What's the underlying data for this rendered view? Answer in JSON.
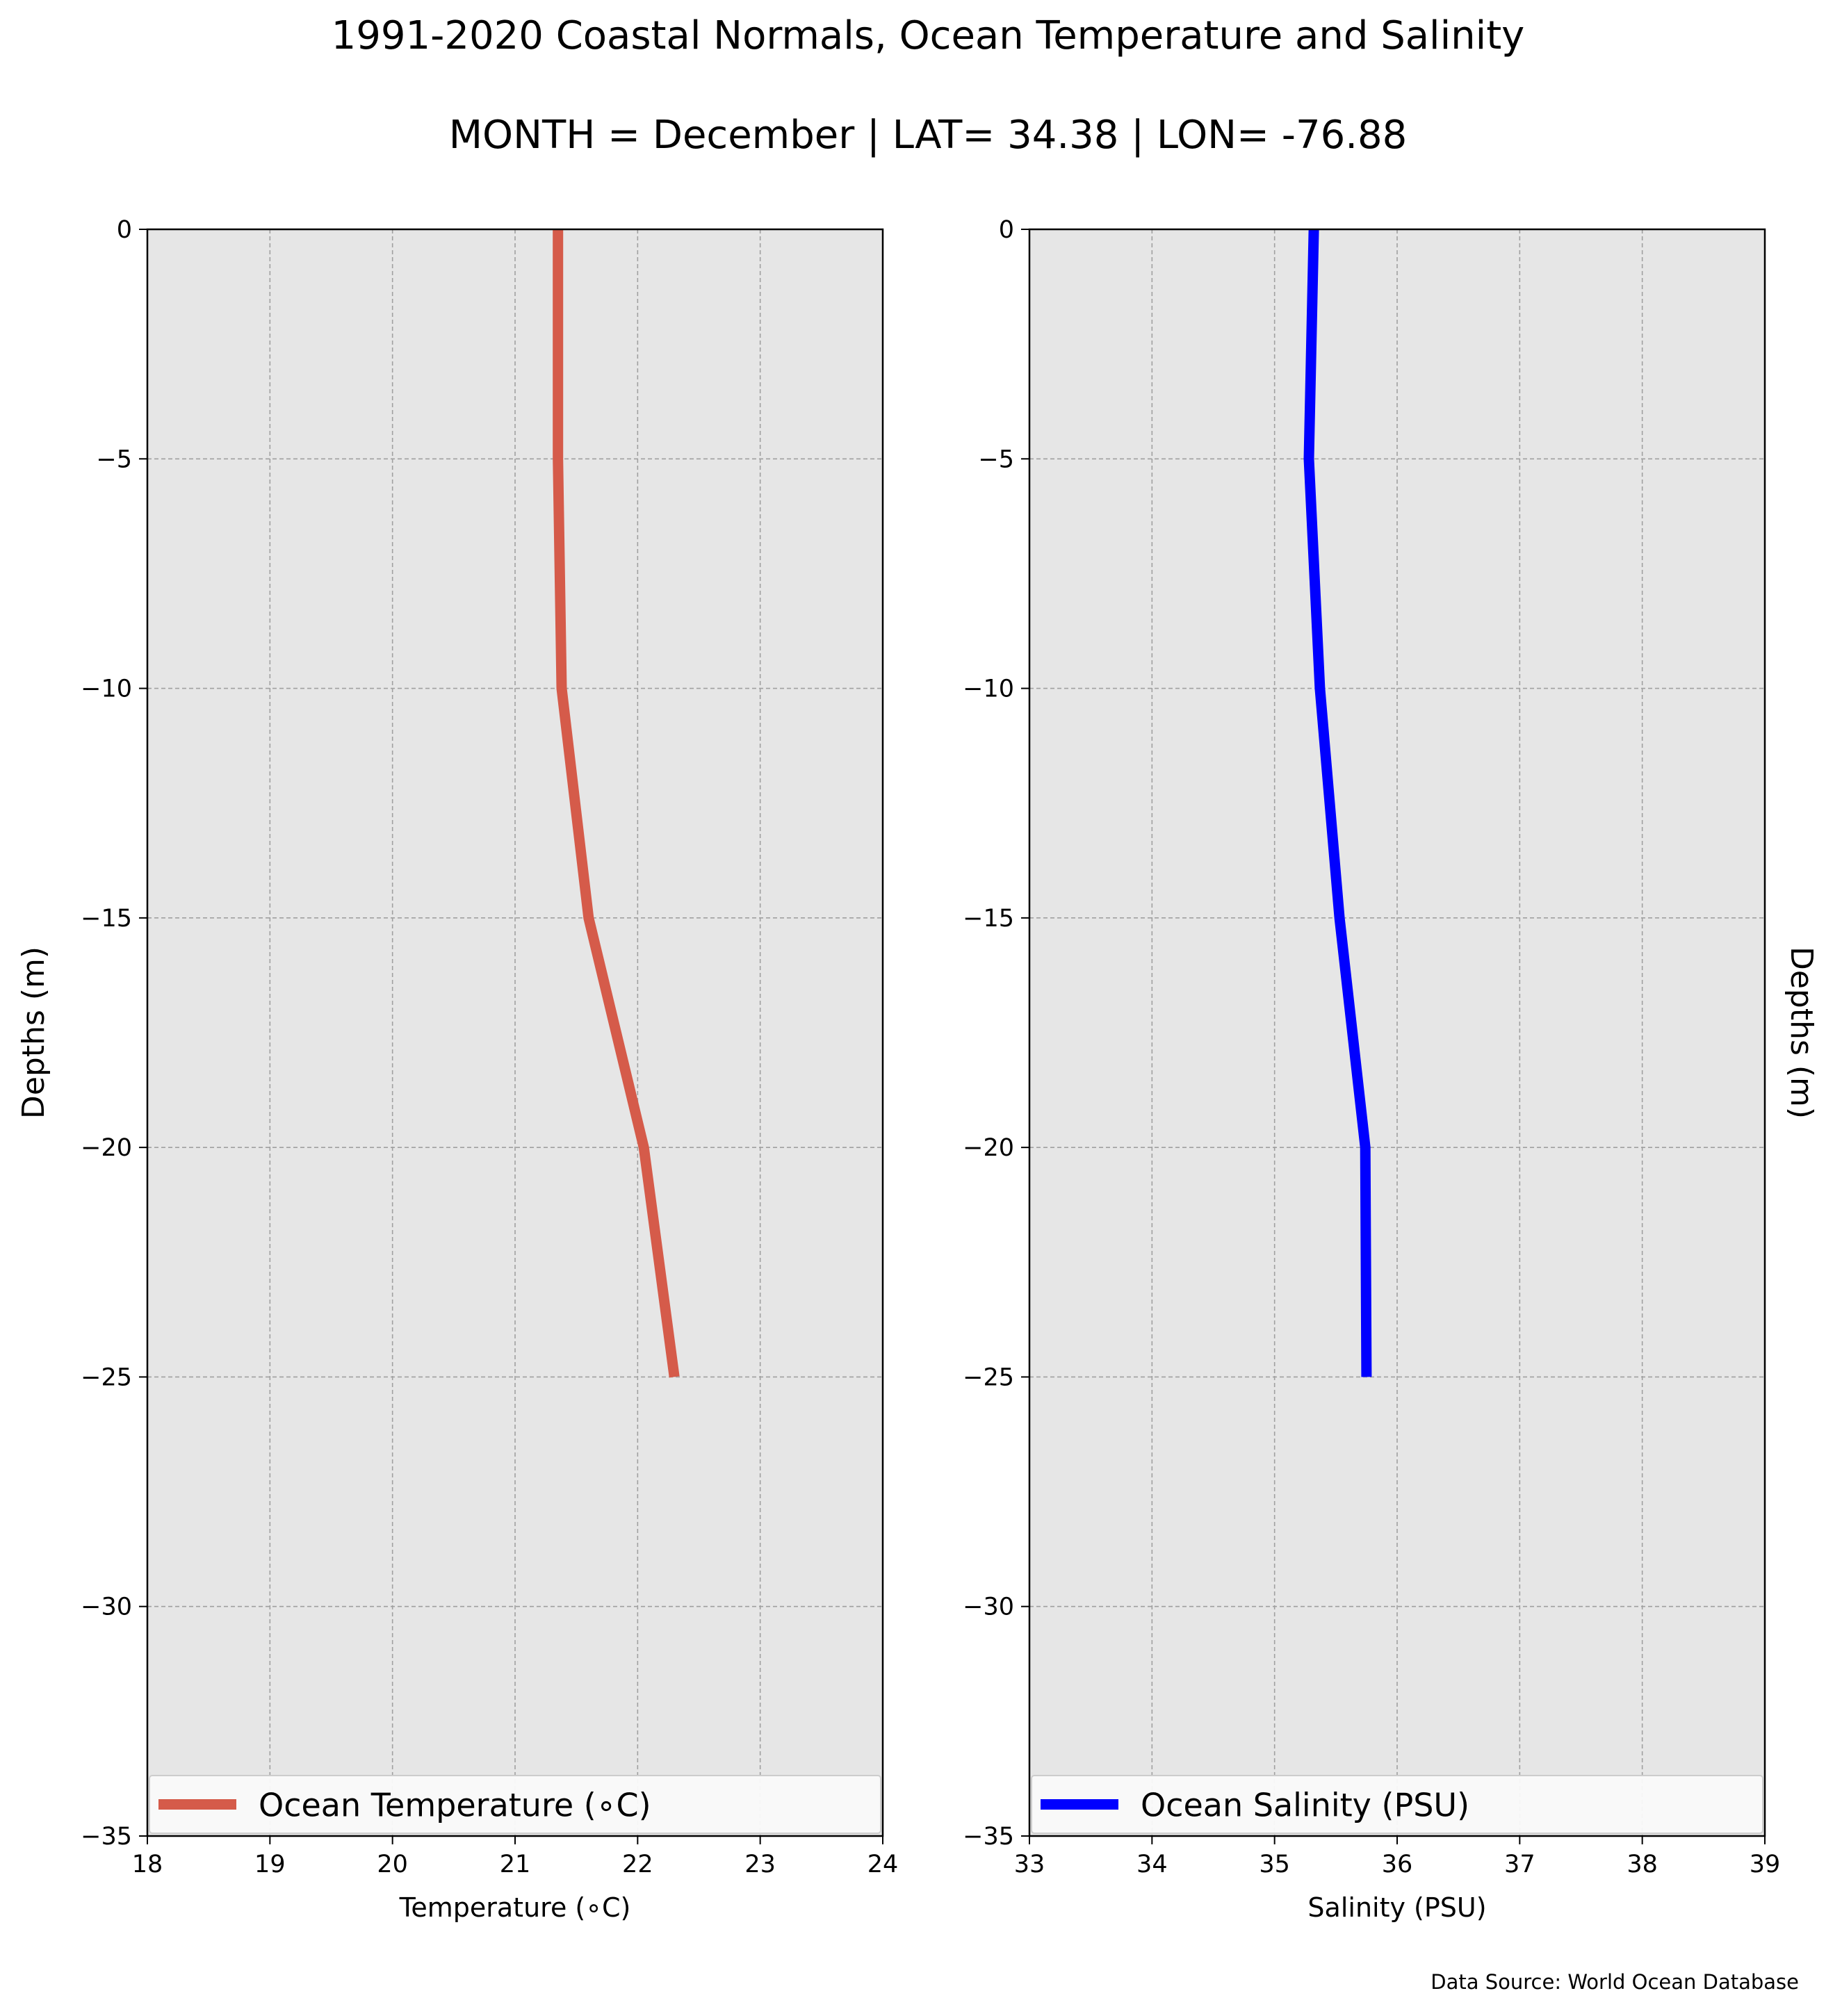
{
  "title": "1991-2020 Coastal Normals, Ocean Temperature and Salinity",
  "subtitle": "MONTH = December | LAT= 34.38 | LON= -76.88",
  "source_note": "Data Source: World Ocean Database",
  "chart_data": [
    {
      "type": "line",
      "xlabel": "Temperature ($^\\circ$C)",
      "xlabel_display": "Temperature (∘C)",
      "ylabel": "Depths (m)",
      "xlim": [
        18,
        24
      ],
      "ylim": [
        -35,
        0
      ],
      "x_ticks": [
        "18",
        "19",
        "20",
        "21",
        "22",
        "23",
        "24"
      ],
      "y_ticks": [
        "0",
        "−5",
        "−10",
        "−15",
        "−20",
        "−25",
        "−30",
        "−35"
      ],
      "grid": true,
      "legend_position": "lower center",
      "series": [
        {
          "name": "Ocean Temperature (∘C)",
          "color": "#d55b4a",
          "x": [
            21.35,
            21.35,
            21.38,
            21.6,
            22.05,
            22.3
          ],
          "y": [
            0,
            -5,
            -10,
            -15,
            -20,
            -25
          ]
        }
      ]
    },
    {
      "type": "line",
      "xlabel": "Salinity (PSU)",
      "ylabel": "Depths (m)",
      "xlim": [
        33,
        39
      ],
      "ylim": [
        -35,
        0
      ],
      "x_ticks": [
        "33",
        "34",
        "35",
        "36",
        "37",
        "38",
        "39"
      ],
      "y_ticks": [
        "0",
        "−5",
        "−10",
        "−15",
        "−20",
        "−25",
        "−30",
        "−35"
      ],
      "grid": true,
      "legend_position": "lower center",
      "series": [
        {
          "name": "Ocean Salinity (PSU)",
          "color": "#0000ff",
          "x": [
            35.32,
            35.28,
            35.37,
            35.53,
            35.74,
            35.75
          ],
          "y": [
            0,
            -5,
            -10,
            -15,
            -20,
            -25
          ]
        }
      ]
    }
  ]
}
